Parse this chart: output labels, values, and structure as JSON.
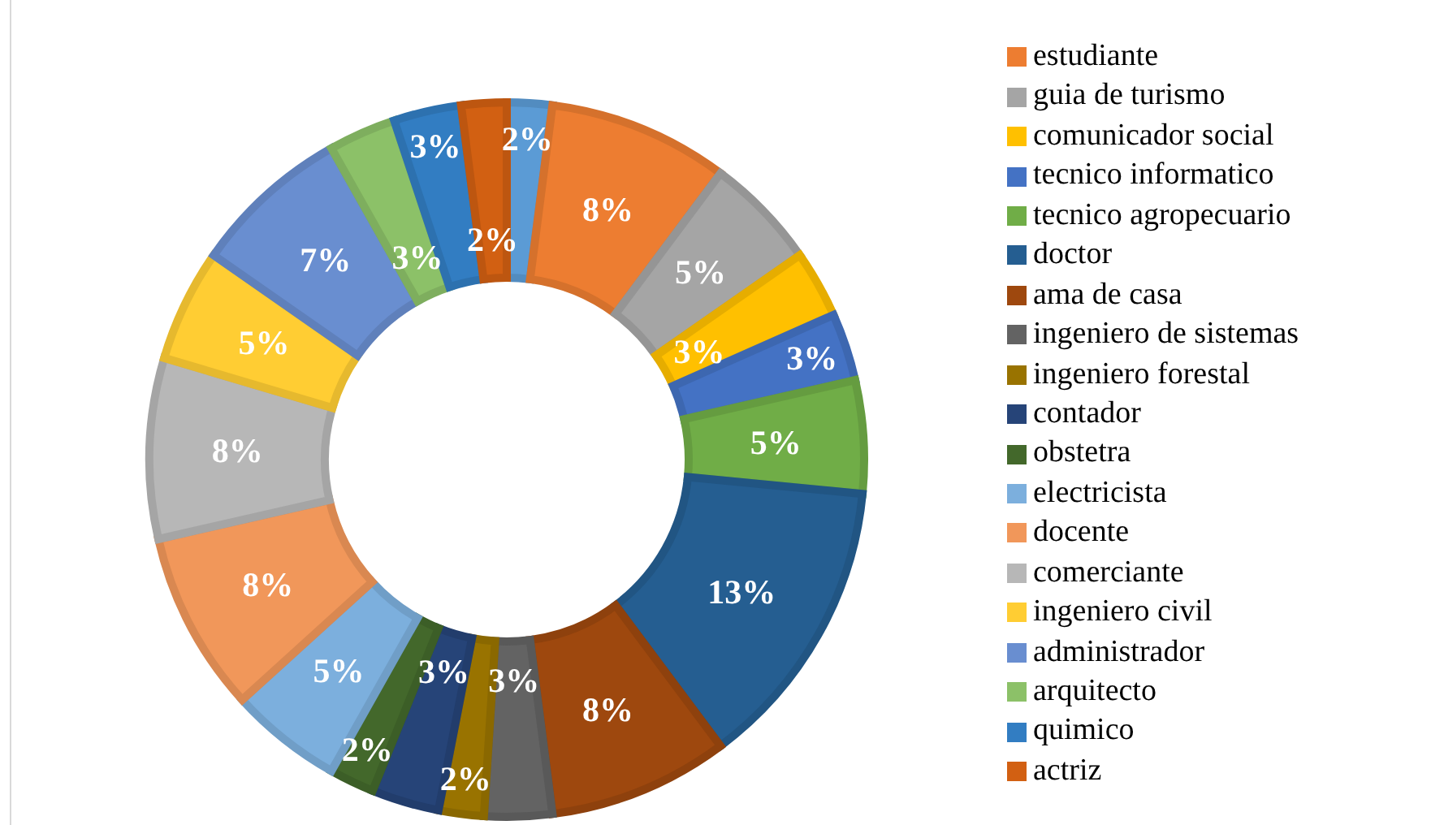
{
  "chart_data": {
    "type": "donut",
    "categories": [
      null,
      "estudiante",
      "guia de turismo",
      "comunicador social",
      "tecnico informatico",
      "tecnico agropecuario",
      "doctor",
      "ama de casa",
      "ingeniero de sistemas",
      "ingeniero forestal",
      "contador",
      "obstetra",
      "electricista",
      "docente",
      "comerciante",
      "ingeniero civil",
      "administrador",
      "arquitecto",
      "quimico",
      "actriz"
    ],
    "values": [
      2,
      8,
      5,
      3,
      3,
      5,
      13,
      8,
      3,
      2,
      3,
      2,
      5,
      8,
      8,
      5,
      7,
      3,
      3,
      2
    ],
    "colors": [
      "#5b9bd5",
      "#ed7d31",
      "#a5a5a5",
      "#ffc000",
      "#4472c4",
      "#70ad47",
      "#255e91",
      "#9e480e",
      "#636363",
      "#997300",
      "#264478",
      "#43682b",
      "#7cafdd",
      "#f1975a",
      "#b7b7b7",
      "#ffcd33",
      "#698ed0",
      "#8cc168",
      "#327dc2",
      "#d26012"
    ],
    "value_labels": [
      "2%",
      "8%",
      "5%",
      "3%",
      "3%",
      "5%",
      "13%",
      "8%",
      "3%",
      "2%",
      "3%",
      "2%",
      "5%",
      "8%",
      "8%",
      "5%",
      "7%",
      "3%",
      "3%",
      "2%"
    ],
    "legend": "right"
  }
}
